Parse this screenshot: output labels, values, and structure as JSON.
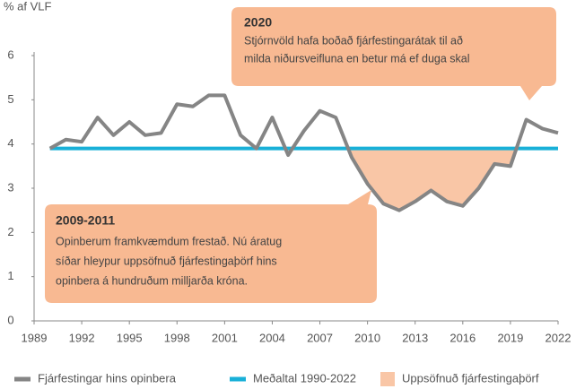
{
  "chart_data": {
    "type": "line",
    "y_label": "% af VLF",
    "x": [
      1990,
      1991,
      1992,
      1993,
      1994,
      1995,
      1996,
      1997,
      1998,
      1999,
      2000,
      2001,
      2002,
      2003,
      2004,
      2005,
      2006,
      2007,
      2008,
      2009,
      2010,
      2011,
      2012,
      2013,
      2014,
      2015,
      2016,
      2017,
      2018,
      2019,
      2020,
      2021,
      2022
    ],
    "series": [
      {
        "name": "Fjárfestingar hins opinbera",
        "color": "#858585",
        "values": [
          3.9,
          4.1,
          4.05,
          4.6,
          4.2,
          4.5,
          4.2,
          4.25,
          4.9,
          4.85,
          5.1,
          5.1,
          4.2,
          3.9,
          4.6,
          3.75,
          4.3,
          4.75,
          4.6,
          3.7,
          3.1,
          2.65,
          2.5,
          2.7,
          2.95,
          2.7,
          2.6,
          3.0,
          3.55,
          3.5,
          4.55,
          4.35,
          4.25
        ]
      },
      {
        "name": "Meðaltal 1990-2022",
        "color": "#19b0d8",
        "x": [
          1990,
          2022
        ],
        "values": [
          3.9,
          3.9
        ]
      }
    ],
    "area": {
      "name": "Uppsöfnuð fjárfestingaþörf",
      "color": "#f9c6a6"
    },
    "xlim": [
      1989,
      2022
    ],
    "xticks": [
      1989,
      1992,
      1995,
      1998,
      2001,
      2004,
      2007,
      2010,
      2013,
      2016,
      2019,
      2022
    ],
    "ylim": [
      0,
      6
    ],
    "yticks": [
      0,
      1,
      2,
      3,
      4,
      5,
      6
    ],
    "annotations": [
      {
        "title": "2020",
        "lines": [
          "Stjórnvöld hafa boðað fjárfestingarátak til að",
          "milda niðursveifluna en betur má ef duga skal"
        ]
      },
      {
        "title": "2009-2011",
        "lines": [
          "Opinberum framkvæmdum frestað. Nú áratug",
          "síðar hleypur uppsöfnuð fjárfestingaþörf hins",
          "opinbera á hundruðum milljarða króna."
        ]
      }
    ]
  }
}
